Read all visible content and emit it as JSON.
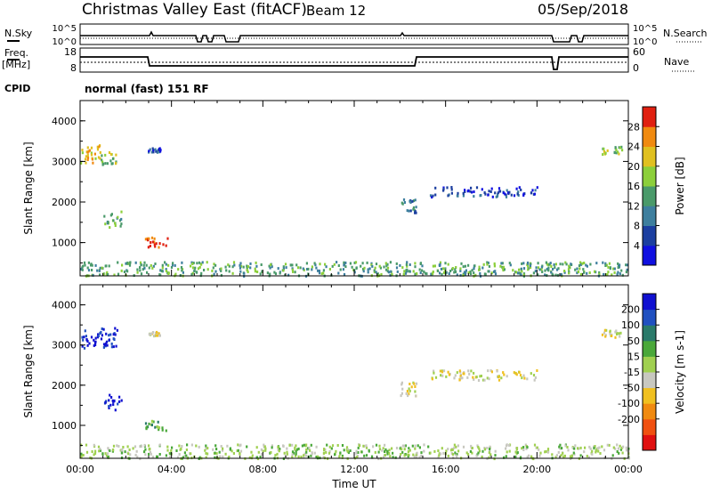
{
  "header": {
    "station": "Christmas Valley East (fitACF)",
    "beam": "Beam 12",
    "date": "05/Sep/2018"
  },
  "panels": {
    "nsky": {
      "label": "N.Sky",
      "ticks": [
        "10^5",
        "10^0"
      ]
    },
    "nsearch": {
      "label": "N.Search",
      "ticks": [
        "10^5",
        "10^0"
      ]
    },
    "freq": {
      "label_line1": "Freq.",
      "label_line2": "[MHz]",
      "ticks": [
        "18",
        "8"
      ]
    },
    "nave": {
      "label": "Nave",
      "ticks": [
        "60",
        "0"
      ]
    },
    "cpid": {
      "label": "CPID",
      "value": "normal (fast) 151 RF"
    }
  },
  "chart_data": [
    {
      "type": "heatmap",
      "title": "",
      "ylabel": "Slant Range [km]",
      "xlabel": "",
      "xlim": [
        0,
        24
      ],
      "ylim": [
        180,
        4500
      ],
      "yticks": [
        "1000",
        "2000",
        "3000",
        "4000"
      ],
      "colorbar": {
        "label": "Power [dB]",
        "ticks": [
          "4",
          "8",
          "12",
          "16",
          "20",
          "24",
          "28"
        ],
        "colors": [
          "#1010e0",
          "#1c3fa0",
          "#3e7f9e",
          "#4a9a6a",
          "#8ccf3a",
          "#e0c020",
          "#f08a10",
          "#e02010"
        ]
      },
      "patches": [
        {
          "t0": 0.0,
          "t1": 0.9,
          "r0": 2950,
          "r1": 3450,
          "level": 5
        },
        {
          "t0": 0.9,
          "t1": 1.6,
          "r0": 2950,
          "r1": 3250,
          "level": 4
        },
        {
          "t0": 1.0,
          "t1": 1.8,
          "r0": 1400,
          "r1": 1800,
          "level": 3
        },
        {
          "t0": 2.8,
          "t1": 3.8,
          "r0": 900,
          "r1": 1150,
          "level": 7
        },
        {
          "t0": 2.9,
          "t1": 3.5,
          "r0": 3250,
          "r1": 3350,
          "level": 1
        },
        {
          "t0": 14.0,
          "t1": 14.7,
          "r0": 1750,
          "r1": 2100,
          "level": 2
        },
        {
          "t0": 15.3,
          "t1": 20.0,
          "r0": 2150,
          "r1": 2400,
          "level": 1
        },
        {
          "t0": 22.8,
          "t1": 23.7,
          "r0": 3200,
          "r1": 3400,
          "level": 4
        },
        {
          "t0": 0.0,
          "t1": 24.0,
          "r0": 200,
          "r1": 550,
          "level": 3
        }
      ]
    },
    {
      "type": "heatmap",
      "title": "",
      "ylabel": "Slant Range [km]",
      "xlabel": "Time UT",
      "xlim": [
        0,
        24
      ],
      "ylim": [
        180,
        4500
      ],
      "xticks": [
        "00:00",
        "04:00",
        "08:00",
        "12:00",
        "16:00",
        "20:00",
        "00:00"
      ],
      "yticks": [
        "1000",
        "2000",
        "3000",
        "4000"
      ],
      "colorbar": {
        "label": "Velocity [m s-1]",
        "ticks": [
          "200",
          "100",
          "50",
          "15",
          "-15",
          "-50",
          "-100",
          "-200"
        ],
        "colors": [
          "#1010d0",
          "#2050c0",
          "#2a7a6a",
          "#4aa83a",
          "#a0d050",
          "#c8c8c0",
          "#f0c020",
          "#f08a10",
          "#f05010",
          "#e01010"
        ]
      },
      "patches": [
        {
          "t0": 0.0,
          "t1": 1.6,
          "r0": 2950,
          "r1": 3450,
          "level": 0
        },
        {
          "t0": 1.0,
          "t1": 1.8,
          "r0": 1400,
          "r1": 1800,
          "level": 0
        },
        {
          "t0": 2.8,
          "t1": 3.8,
          "r0": 900,
          "r1": 1150,
          "level": 3
        },
        {
          "t0": 2.9,
          "t1": 3.5,
          "r0": 3250,
          "r1": 3350,
          "level": 5
        },
        {
          "t0": 14.0,
          "t1": 14.7,
          "r0": 1750,
          "r1": 2100,
          "level": 5
        },
        {
          "t0": 15.3,
          "t1": 20.0,
          "r0": 2150,
          "r1": 2400,
          "level": 5
        },
        {
          "t0": 22.8,
          "t1": 23.7,
          "r0": 3200,
          "r1": 3400,
          "level": 5
        },
        {
          "t0": 0.0,
          "t1": 24.0,
          "r0": 200,
          "r1": 550,
          "level": 4
        }
      ]
    }
  ]
}
